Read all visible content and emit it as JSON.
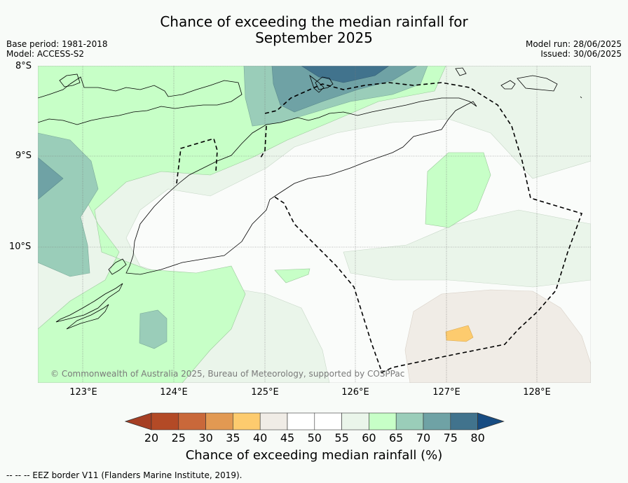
{
  "title_line1": "Chance of exceeding the median rainfall for",
  "title_line2": "September 2025",
  "base_period": "Base period: 1981-2018",
  "model": "Model: ACCESS-S2",
  "model_run": "Model run: 28/06/2025",
  "issued": "Issued: 30/06/2025",
  "lat_labels": [
    "8°S",
    "9°S",
    "10°S"
  ],
  "lon_labels": [
    "123°E",
    "124°E",
    "125°E",
    "126°E",
    "127°E",
    "128°E"
  ],
  "copyright": "© Commonwealth of Australia 2025, Bureau of Meteorology, supported by COSPPac",
  "colorbar": {
    "ticks": [
      "20",
      "25",
      "30",
      "35",
      "40",
      "45",
      "50",
      "55",
      "60",
      "65",
      "70",
      "75",
      "80"
    ],
    "colors": [
      "#a63f24",
      "#b34a26",
      "#c9683a",
      "#e29952",
      "#fdcb6e",
      "#f0ece6",
      "#ffffff",
      "#ffffff",
      "#eaf5ea",
      "#c7ffc7",
      "#9acdb9",
      "#6fa2a5",
      "#41738d",
      "#174c82"
    ],
    "label": "Chance of exceeding median rainfall (%)"
  },
  "footnote": "--  --  -- EEZ border V11 (Flanders Marine Institute, 2019).",
  "map_colors": {
    "p45_55": "#fafcfa",
    "p55_60": "#eaf5ea",
    "p60_65": "#c7ffc7",
    "p65_70": "#9acdb9",
    "p70_75": "#6fa2a5",
    "p75_80": "#41738d",
    "p40_45": "#f0ece6",
    "p35_40": "#fdcb6e"
  }
}
